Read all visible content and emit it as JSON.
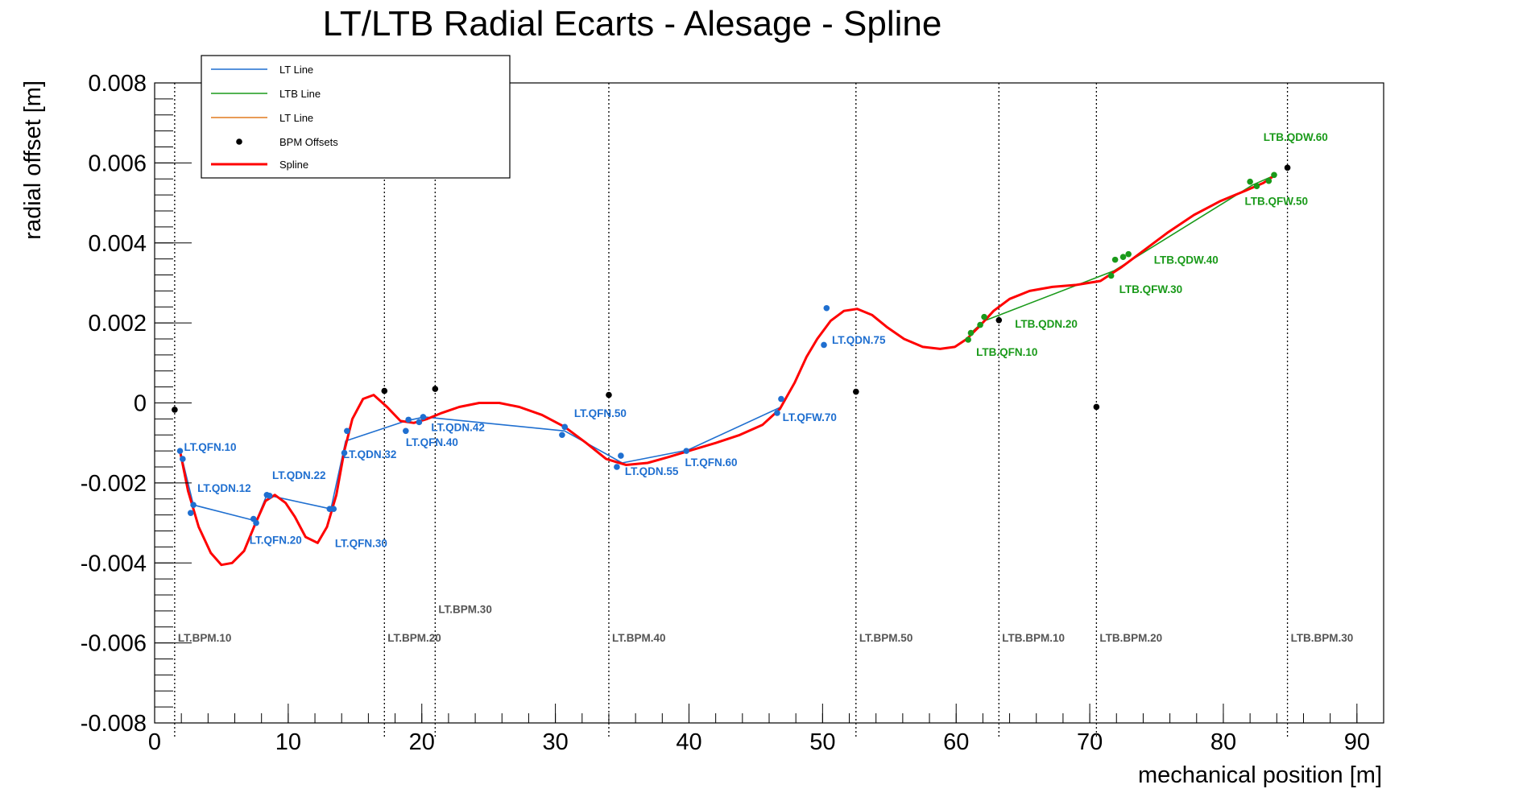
{
  "chart_data": {
    "type": "line",
    "title": "LT/LTB Radial Ecarts - Alesage - Spline",
    "xlabel": "mechanical position [m]",
    "ylabel": "radial offset [m]",
    "xlim": [
      0,
      92
    ],
    "ylim": [
      -0.008,
      0.008
    ],
    "x_ticks": [
      0,
      10,
      20,
      30,
      40,
      50,
      60,
      70,
      80,
      90
    ],
    "y_ticks": [
      -0.008,
      -0.006,
      -0.004,
      -0.002,
      0,
      0.002,
      0.004,
      0.006,
      0.008
    ],
    "x_tick_labels": [
      "0",
      "10",
      "20",
      "30",
      "40",
      "50",
      "60",
      "70",
      "80",
      "90"
    ],
    "y_tick_labels": [
      "-0.008",
      "-0.006",
      "-0.004",
      "-0.002",
      "0",
      "0.002",
      "0.004",
      "0.006",
      "0.008"
    ],
    "grid": false,
    "legend_position": "top-left",
    "legend": [
      {
        "name": "LT Line",
        "color": "#1f6fd0",
        "style": "line"
      },
      {
        "name": "LTB Line",
        "color": "#1a9a1a",
        "style": "line"
      },
      {
        "name": "LT Line",
        "color": "#e07a1f",
        "style": "line"
      },
      {
        "name": "BPM Offsets",
        "color": "#000000",
        "style": "marker"
      },
      {
        "name": "Spline",
        "color": "#ff0000",
        "style": "thickline"
      }
    ],
    "series": [
      {
        "name": "LT Line",
        "color": "#1f6fd0",
        "points": [
          [
            1.9,
            -0.0012
          ],
          [
            2.1,
            -0.00145
          ],
          [
            2.9,
            -0.00255
          ],
          [
            7.6,
            -0.00295
          ],
          [
            8.4,
            -0.0023
          ],
          [
            13.2,
            -0.00265
          ],
          [
            14.3,
            -0.00095
          ],
          [
            18.8,
            -0.00045
          ],
          [
            20.2,
            -0.00035
          ],
          [
            30.7,
            -0.0007
          ],
          [
            35.0,
            -0.0015
          ],
          [
            39.9,
            -0.00118
          ],
          [
            46.9,
            -0.0001
          ]
        ]
      },
      {
        "name": "LTB Line",
        "color": "#1a9a1a",
        "points": [
          [
            61.1,
            0.00175
          ],
          [
            62.1,
            0.00205
          ],
          [
            71.8,
            0.0033
          ],
          [
            82.2,
            0.00545
          ],
          [
            83.9,
            0.0057
          ]
        ]
      },
      {
        "name": "Spline",
        "color": "#ff0000",
        "points": [
          [
            1.9,
            -0.0012
          ],
          [
            2.5,
            -0.0022
          ],
          [
            3.3,
            -0.0031
          ],
          [
            4.2,
            -0.00375
          ],
          [
            5.0,
            -0.00405
          ],
          [
            5.8,
            -0.004
          ],
          [
            6.7,
            -0.0037
          ],
          [
            7.5,
            -0.00305
          ],
          [
            8.3,
            -0.00245
          ],
          [
            9.0,
            -0.0023
          ],
          [
            9.8,
            -0.0025
          ],
          [
            10.5,
            -0.00285
          ],
          [
            11.3,
            -0.00335
          ],
          [
            12.2,
            -0.0035
          ],
          [
            12.9,
            -0.0031
          ],
          [
            13.6,
            -0.0023
          ],
          [
            14.2,
            -0.0012
          ],
          [
            14.8,
            -0.0004
          ],
          [
            15.6,
            0.0001
          ],
          [
            16.4,
            0.0002
          ],
          [
            17.4,
            -0.0001
          ],
          [
            18.4,
            -0.00045
          ],
          [
            19.4,
            -0.0005
          ],
          [
            20.4,
            -0.0004
          ],
          [
            21.5,
            -0.00025
          ],
          [
            22.8,
            -0.0001
          ],
          [
            24.3,
            0.0
          ],
          [
            25.8,
            0.0
          ],
          [
            27.3,
            -0.0001
          ],
          [
            29.0,
            -0.0003
          ],
          [
            30.7,
            -0.0006
          ],
          [
            32.3,
            -0.001
          ],
          [
            33.8,
            -0.0014
          ],
          [
            35.3,
            -0.00155
          ],
          [
            36.9,
            -0.0015
          ],
          [
            38.5,
            -0.00135
          ],
          [
            40.2,
            -0.00118
          ],
          [
            42.0,
            -0.001
          ],
          [
            43.8,
            -0.0008
          ],
          [
            45.5,
            -0.00055
          ],
          [
            46.8,
            -0.00015
          ],
          [
            47.9,
            0.0005
          ],
          [
            48.8,
            0.00115
          ],
          [
            49.6,
            0.0016
          ],
          [
            50.6,
            0.00205
          ],
          [
            51.6,
            0.0023
          ],
          [
            52.6,
            0.00235
          ],
          [
            53.7,
            0.0022
          ],
          [
            54.8,
            0.0019
          ],
          [
            56.1,
            0.0016
          ],
          [
            57.5,
            0.0014
          ],
          [
            58.8,
            0.00135
          ],
          [
            59.9,
            0.0014
          ],
          [
            60.8,
            0.0016
          ],
          [
            61.7,
            0.0019
          ],
          [
            62.8,
            0.0023
          ],
          [
            64.0,
            0.0026
          ],
          [
            65.5,
            0.0028
          ],
          [
            67.2,
            0.0029
          ],
          [
            69.0,
            0.00295
          ],
          [
            70.8,
            0.00305
          ],
          [
            72.4,
            0.0034
          ],
          [
            74.0,
            0.0038
          ],
          [
            75.8,
            0.00425
          ],
          [
            77.8,
            0.0047
          ],
          [
            79.8,
            0.00505
          ],
          [
            81.6,
            0.0053
          ],
          [
            83.0,
            0.0055
          ],
          [
            83.9,
            0.0057
          ]
        ]
      }
    ],
    "blue_markers": [
      [
        1.9,
        -0.0012
      ],
      [
        2.1,
        -0.0014
      ],
      [
        2.7,
        -0.00275
      ],
      [
        2.9,
        -0.00255
      ],
      [
        7.4,
        -0.0029
      ],
      [
        7.6,
        -0.003
      ],
      [
        8.4,
        -0.0023
      ],
      [
        8.6,
        -0.00232
      ],
      [
        13.1,
        -0.00265
      ],
      [
        13.4,
        -0.00265
      ],
      [
        14.2,
        -0.00125
      ],
      [
        14.4,
        -0.0007
      ],
      [
        18.8,
        -0.0007
      ],
      [
        19.0,
        -0.00042
      ],
      [
        19.8,
        -0.00048
      ],
      [
        20.1,
        -0.00035
      ],
      [
        30.5,
        -0.0008
      ],
      [
        30.7,
        -0.0006
      ],
      [
        34.6,
        -0.0016
      ],
      [
        34.9,
        -0.00132
      ],
      [
        39.8,
        -0.0012
      ],
      [
        46.6,
        -0.00025
      ],
      [
        46.9,
        0.0001
      ],
      [
        50.1,
        0.00145
      ],
      [
        50.3,
        0.00237
      ]
    ],
    "green_markers": [
      [
        60.9,
        0.00158
      ],
      [
        61.1,
        0.00175
      ],
      [
        61.8,
        0.00195
      ],
      [
        62.1,
        0.00215
      ],
      [
        71.6,
        0.00318
      ],
      [
        71.9,
        0.00358
      ],
      [
        72.5,
        0.00365
      ],
      [
        72.9,
        0.00372
      ],
      [
        82.0,
        0.00553
      ],
      [
        82.5,
        0.00542
      ],
      [
        83.4,
        0.00555
      ],
      [
        83.8,
        0.0057
      ]
    ],
    "bpm_offsets": [
      [
        1.5,
        -0.00017
      ],
      [
        17.2,
        0.0003
      ],
      [
        21.0,
        0.00035
      ],
      [
        34.0,
        0.0002
      ],
      [
        52.5,
        0.00028
      ],
      [
        63.2,
        0.00207
      ],
      [
        70.5,
        -0.0001
      ],
      [
        84.8,
        0.00588
      ]
    ],
    "bpm_lines": [
      {
        "x": 1.5,
        "label": "LT.BPM.10",
        "label_y": -0.00597
      },
      {
        "x": 17.2,
        "label": "LT.BPM.20",
        "label_y": -0.00597
      },
      {
        "x": 21.0,
        "label": "LT.BPM.30",
        "label_y": -0.00525
      },
      {
        "x": 34.0,
        "label": "LT.BPM.40",
        "label_y": -0.00597
      },
      {
        "x": 52.5,
        "label": "LT.BPM.50",
        "label_y": -0.00597
      },
      {
        "x": 63.2,
        "label": "LTB.BPM.10",
        "label_y": -0.00597
      },
      {
        "x": 70.5,
        "label": "LTB.BPM.20",
        "label_y": -0.00597
      },
      {
        "x": 84.8,
        "label": "LTB.BPM.30",
        "label_y": -0.00597
      }
    ],
    "element_labels": [
      {
        "text": "LT.QFN.10",
        "x": 2.2,
        "y": -0.0012,
        "color": "#1f6fd0"
      },
      {
        "text": "LT.QDN.12",
        "x": 3.2,
        "y": -0.00222,
        "color": "#1f6fd0"
      },
      {
        "text": "LT.QDN.22",
        "x": 8.8,
        "y": -0.0019,
        "color": "#1f6fd0"
      },
      {
        "text": "LT.QFN.20",
        "x": 7.1,
        "y": -0.00352,
        "color": "#1f6fd0"
      },
      {
        "text": "LT.QFN.30",
        "x": 13.5,
        "y": -0.0036,
        "color": "#1f6fd0"
      },
      {
        "text": "LT.QDN.32",
        "x": 14.1,
        "y": -0.00138,
        "color": "#1f6fd0"
      },
      {
        "text": "LT.QFN.40",
        "x": 18.8,
        "y": -0.00108,
        "color": "#1f6fd0"
      },
      {
        "text": "LT.QDN.42",
        "x": 20.7,
        "y": -0.0007,
        "color": "#1f6fd0"
      },
      {
        "text": "LT.QFN.50",
        "x": 31.4,
        "y": -0.00035,
        "color": "#1f6fd0"
      },
      {
        "text": "LT.QDN.55",
        "x": 35.2,
        "y": -0.0018,
        "color": "#1f6fd0"
      },
      {
        "text": "LT.QFN.60",
        "x": 39.7,
        "y": -0.00158,
        "color": "#1f6fd0"
      },
      {
        "text": "LT.QFW.70",
        "x": 47.0,
        "y": -0.00045,
        "color": "#1f6fd0"
      },
      {
        "text": "LT.QDN.75",
        "x": 50.7,
        "y": 0.00148,
        "color": "#1f6fd0"
      },
      {
        "text": "LTB.QFN.10",
        "x": 61.5,
        "y": 0.00118,
        "color": "#1a9a1a"
      },
      {
        "text": "LTB.QDN.20",
        "x": 64.4,
        "y": 0.00188,
        "color": "#1a9a1a"
      },
      {
        "text": "LTB.QFW.30",
        "x": 72.2,
        "y": 0.00275,
        "color": "#1a9a1a"
      },
      {
        "text": "LTB.QDW.40",
        "x": 74.8,
        "y": 0.00348,
        "color": "#1a9a1a"
      },
      {
        "text": "LTB.QFW.50",
        "x": 81.6,
        "y": 0.00495,
        "color": "#1a9a1a"
      },
      {
        "text": "LTB.QDW.60",
        "x": 83.0,
        "y": 0.00655,
        "color": "#1a9a1a"
      }
    ]
  }
}
